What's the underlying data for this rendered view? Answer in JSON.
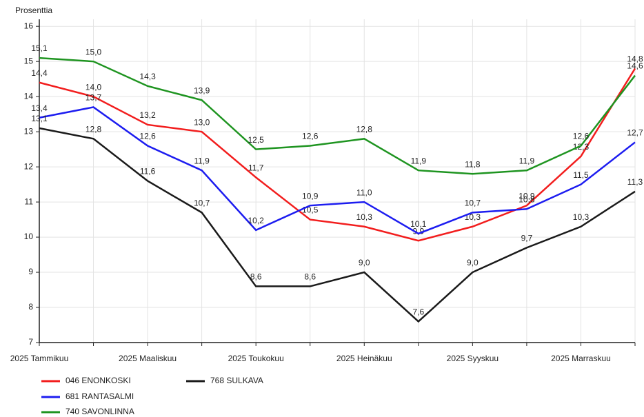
{
  "chart_data": {
    "type": "line",
    "y_label": "Prosenttia",
    "categories": [
      "2025 Tammikuu",
      null,
      "2025 Maaliskuu",
      null,
      "2025 Toukokuu",
      null,
      "2025 Heinäkuu",
      null,
      "2025 Syyskuu",
      null,
      "2025 Marraskuu",
      null
    ],
    "ylim": [
      7,
      16.2
    ],
    "yticks": [
      7,
      8,
      9,
      10,
      11,
      12,
      13,
      14,
      15,
      16
    ],
    "grid": true,
    "legend": "bottom",
    "series": [
      {
        "name": "046 ENONKOSKI",
        "color": "#f21d1d",
        "values": [
          14.4,
          14.0,
          13.2,
          13.0,
          11.7,
          10.5,
          10.3,
          9.9,
          10.3,
          10.9,
          12.3,
          14.8
        ],
        "value_labels": [
          "14,4",
          "14,0",
          "13,2",
          "13,0",
          "11,7",
          "10,5",
          "10,3",
          "9,9",
          "10,3",
          "10,9",
          "12,3",
          "14,8"
        ]
      },
      {
        "name": "681 RANTASALMI",
        "color": "#1c1cf0",
        "values": [
          13.4,
          13.7,
          12.6,
          11.9,
          10.2,
          10.9,
          11.0,
          10.1,
          10.7,
          10.8,
          11.5,
          12.7
        ],
        "value_labels": [
          "13,4",
          "13,7",
          "12,6",
          "11,9",
          "10,2",
          "10,9",
          "11,0",
          "10,1",
          "10,7",
          "10,8",
          "11,5",
          "12,7"
        ]
      },
      {
        "name": "740 SAVONLINNA",
        "color": "#1e9420",
        "values": [
          15.1,
          15.0,
          14.3,
          13.9,
          12.5,
          12.6,
          12.8,
          11.9,
          11.8,
          11.9,
          12.6,
          14.6
        ],
        "value_labels": [
          "15,1",
          "15,0",
          "14,3",
          "13,9",
          "12,5",
          "12,6",
          "12,8",
          "11,9",
          "11,8",
          "11,9",
          "12,6",
          "14,6"
        ]
      },
      {
        "name": "768 SULKAVA",
        "color": "#1a1a1a",
        "values": [
          13.1,
          12.8,
          11.6,
          10.7,
          8.6,
          8.6,
          9.0,
          7.6,
          9.0,
          9.7,
          10.3,
          11.3
        ],
        "value_labels": [
          "13,1",
          "12,8",
          "11,6",
          "10,7",
          "8,6",
          "8,6",
          "9,0",
          "7,6",
          "9,0",
          "9,7",
          "10,3",
          "11,3"
        ]
      }
    ]
  }
}
